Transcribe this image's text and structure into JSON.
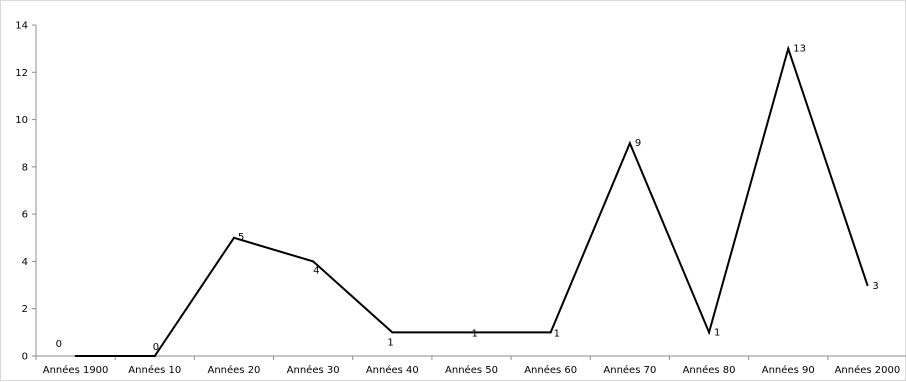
{
  "chart_data": {
    "type": "line",
    "categories": [
      "Années 1900",
      "Années 10",
      "Années 20",
      "Années 30",
      "Années 40",
      "Années 50",
      "Années 60",
      "Années 70",
      "Années 80",
      "Années 90",
      "Années 2000"
    ],
    "series": [
      {
        "values": [
          0,
          0,
          5,
          4,
          1,
          1,
          1,
          9,
          1,
          13,
          3
        ],
        "color": "#000000"
      }
    ],
    "data_labels": [
      "0",
      "0",
      "5",
      "4",
      "1",
      "1",
      "1",
      "9",
      "1",
      "13",
      "3"
    ],
    "y_ticks": [
      "0",
      "2",
      "4",
      "6",
      "8",
      "10",
      "12",
      "14"
    ],
    "ylim": [
      0,
      14
    ],
    "grid": false,
    "legend": "none",
    "title": "",
    "xlabel": "",
    "ylabel": ""
  }
}
